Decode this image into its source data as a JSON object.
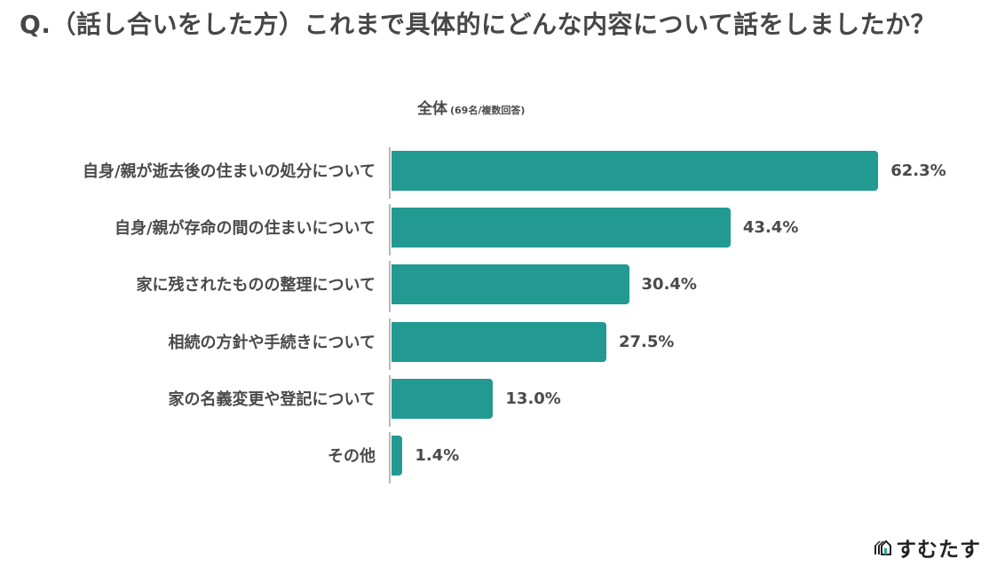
{
  "title": "Q.（話し合いをした方）これまで具体的にどんな内容について話をしましたか？",
  "subtitle": {
    "main": "全体",
    "note": "(69名/複数回答)"
  },
  "bars": [
    {
      "label": "自身/親が逝去後の住まいの処分について",
      "value": 62.3,
      "display": "62.3%"
    },
    {
      "label": "自身/親が存命の間の住まいについて",
      "value": 43.4,
      "display": "43.4%"
    },
    {
      "label": "家に残されたものの整理について",
      "value": 30.4,
      "display": "30.4%"
    },
    {
      "label": "相続の方針や手続きについて",
      "value": 27.5,
      "display": "27.5%"
    },
    {
      "label": "家の名義変更や登記について",
      "value": 13.0,
      "display": "13.0%"
    },
    {
      "label": "その他",
      "value": 1.4,
      "display": "1.4%"
    }
  ],
  "colors": {
    "bar": "#229a92",
    "text": "#4a4a4a",
    "axis": "#b8b8b8"
  },
  "logo": {
    "text": "すむたす",
    "icon": "house-logo-icon"
  },
  "chart_data": {
    "type": "bar",
    "orientation": "horizontal",
    "title": "Q.（話し合いをした方）これまで具体的にどんな内容について話をしましたか？",
    "subtitle": "全体 (69名/複数回答)",
    "categories": [
      "自身/親が逝去後の住まいの処分について",
      "自身/親が存命の間の住まいについて",
      "家に残されたものの整理について",
      "相続の方針や手続きについて",
      "家の名義変更や登記について",
      "その他"
    ],
    "values": [
      62.3,
      43.4,
      30.4,
      27.5,
      13.0,
      1.4
    ],
    "unit": "%",
    "xlabel": "",
    "ylabel": "",
    "grid": false,
    "legend": null
  }
}
